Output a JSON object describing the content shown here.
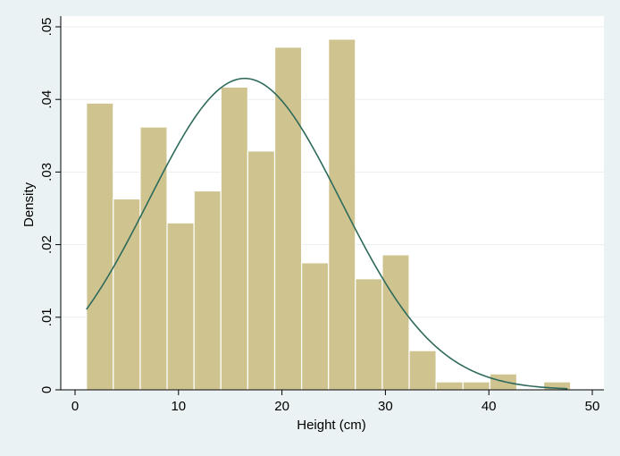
{
  "chart_data": {
    "type": "histogram",
    "xlabel": "Height (cm)",
    "ylabel": "Density",
    "xlim": [
      -1,
      51
    ],
    "ylim": [
      0,
      0.05
    ],
    "x_ticks": [
      0,
      10,
      20,
      30,
      40,
      50
    ],
    "x_tick_labels": [
      "0",
      "10",
      "20",
      "30",
      "40",
      "50"
    ],
    "y_ticks": [
      0,
      0.01,
      0.02,
      0.03,
      0.04,
      0.05
    ],
    "y_tick_labels": [
      "0",
      ".01",
      ".02",
      ".03",
      ".04",
      ".05"
    ],
    "grid": "horizontal",
    "bins": [
      {
        "x0": 1.1,
        "x1": 3.7,
        "density": 0.0395
      },
      {
        "x0": 3.7,
        "x1": 6.3,
        "density": 0.0263
      },
      {
        "x0": 6.3,
        "x1": 8.9,
        "density": 0.0362
      },
      {
        "x0": 8.9,
        "x1": 11.5,
        "density": 0.023
      },
      {
        "x0": 11.5,
        "x1": 14.1,
        "density": 0.0274
      },
      {
        "x0": 14.1,
        "x1": 16.7,
        "density": 0.0417
      },
      {
        "x0": 16.7,
        "x1": 19.3,
        "density": 0.0329
      },
      {
        "x0": 19.3,
        "x1": 21.9,
        "density": 0.0472
      },
      {
        "x0": 21.9,
        "x1": 24.5,
        "density": 0.0175
      },
      {
        "x0": 24.5,
        "x1": 27.1,
        "density": 0.0483
      },
      {
        "x0": 27.1,
        "x1": 29.7,
        "density": 0.0153
      },
      {
        "x0": 29.7,
        "x1": 32.3,
        "density": 0.0186
      },
      {
        "x0": 32.3,
        "x1": 34.9,
        "density": 0.0054
      },
      {
        "x0": 34.9,
        "x1": 37.5,
        "density": 0.0011
      },
      {
        "x0": 37.5,
        "x1": 40.1,
        "density": 0.0011
      },
      {
        "x0": 40.1,
        "x1": 42.7,
        "density": 0.0022
      },
      {
        "x0": 42.7,
        "x1": 45.3,
        "density": 0
      },
      {
        "x0": 45.3,
        "x1": 47.9,
        "density": 0.0011
      }
    ],
    "normal_curve": {
      "mean": 16.4,
      "sd": 9.3,
      "x_range": [
        1.1,
        47.6
      ]
    },
    "colors": {
      "background": "#eaf2f3",
      "plot_area": "#ffffff",
      "bar_fill": "#cfc48f",
      "bar_stroke": "#ffffff",
      "curve": "#2e6a5c",
      "grid": "#e8eeef",
      "axis": "#000000"
    }
  }
}
